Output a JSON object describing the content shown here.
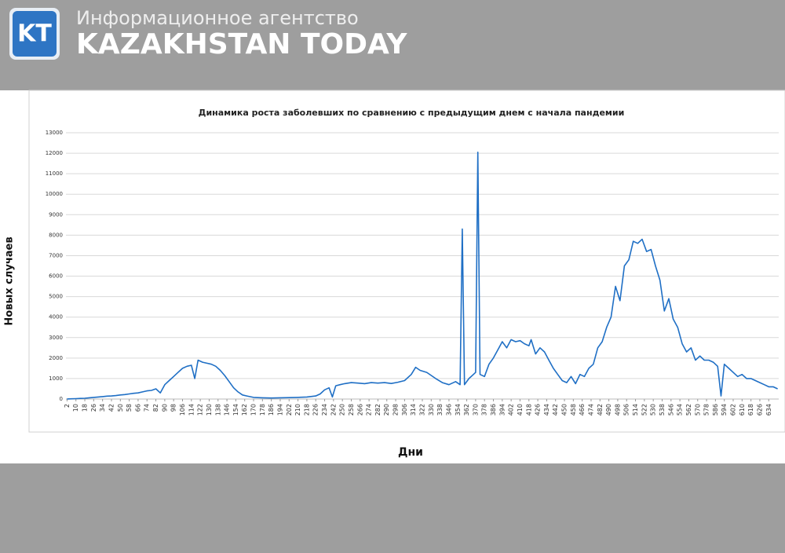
{
  "header": {
    "logo": "KT",
    "agency": "Информационное агентство",
    "brand": "KAZAKHSTAN TODAY"
  },
  "chart_data": {
    "type": "line",
    "title": "Динамика роста заболевших по сравнению с предыдущим днем с начала пандемии",
    "x_label": "Дни",
    "y_label": "Новых случаев",
    "color": "#1f6fc5",
    "grid": true,
    "xlim": [
      1,
      643
    ],
    "ylim": [
      0,
      13000
    ],
    "yticks": [
      0,
      1000,
      2000,
      3000,
      4000,
      5000,
      6000,
      7000,
      8000,
      9000,
      10000,
      11000,
      12000,
      13000
    ],
    "xticks": [
      2,
      10,
      18,
      26,
      34,
      42,
      50,
      58,
      66,
      74,
      82,
      90,
      98,
      106,
      114,
      122,
      130,
      138,
      146,
      154,
      162,
      170,
      178,
      186,
      194,
      202,
      210,
      218,
      226,
      234,
      242,
      250,
      258,
      266,
      274,
      282,
      290,
      298,
      306,
      314,
      322,
      330,
      338,
      346,
      354,
      362,
      370,
      378,
      386,
      394,
      402,
      410,
      418,
      426,
      434,
      442,
      450,
      458,
      466,
      474,
      482,
      490,
      498,
      506,
      514,
      522,
      530,
      538,
      546,
      554,
      562,
      570,
      578,
      586,
      594,
      602,
      610,
      618,
      626,
      634
    ],
    "x": [
      2,
      6,
      10,
      14,
      18,
      22,
      26,
      30,
      34,
      38,
      42,
      46,
      50,
      54,
      58,
      62,
      66,
      70,
      74,
      78,
      82,
      86,
      90,
      94,
      98,
      102,
      106,
      110,
      114,
      117,
      120,
      124,
      128,
      132,
      136,
      140,
      144,
      148,
      152,
      156,
      160,
      164,
      170,
      178,
      186,
      194,
      202,
      210,
      218,
      226,
      230,
      234,
      238,
      241,
      244,
      248,
      252,
      258,
      264,
      270,
      276,
      282,
      288,
      294,
      300,
      306,
      312,
      316,
      320,
      326,
      334,
      340,
      346,
      352,
      356,
      358,
      360,
      364,
      368,
      370,
      372,
      374,
      378,
      382,
      386,
      390,
      394,
      398,
      402,
      406,
      410,
      414,
      418,
      420,
      424,
      428,
      432,
      436,
      440,
      444,
      448,
      452,
      456,
      460,
      464,
      468,
      472,
      476,
      480,
      484,
      488,
      492,
      496,
      500,
      504,
      508,
      512,
      516,
      520,
      524,
      528,
      532,
      536,
      540,
      544,
      548,
      552,
      556,
      560,
      564,
      568,
      572,
      576,
      580,
      584,
      588,
      591,
      594,
      598,
      602,
      606,
      610,
      614,
      618,
      622,
      626,
      630,
      634,
      638,
      642
    ],
    "values": [
      5,
      10,
      20,
      30,
      40,
      60,
      80,
      100,
      120,
      140,
      150,
      170,
      200,
      220,
      250,
      280,
      300,
      350,
      400,
      420,
      500,
      300,
      700,
      900,
      1100,
      1300,
      1500,
      1600,
      1650,
      1000,
      1900,
      1800,
      1750,
      1700,
      1600,
      1400,
      1150,
      850,
      550,
      350,
      200,
      150,
      80,
      60,
      50,
      60,
      70,
      80,
      100,
      150,
      250,
      450,
      550,
      100,
      650,
      700,
      750,
      800,
      780,
      750,
      800,
      780,
      800,
      760,
      820,
      900,
      1200,
      1550,
      1400,
      1300,
      1000,
      800,
      700,
      850,
      700,
      8300,
      700,
      1000,
      1200,
      1300,
      12050,
      1200,
      1100,
      1700,
      2000,
      2400,
      2800,
      2500,
      2900,
      2800,
      2850,
      2700,
      2600,
      2900,
      2200,
      2500,
      2300,
      1900,
      1500,
      1200,
      900,
      800,
      1100,
      750,
      1200,
      1100,
      1500,
      1700,
      2500,
      2800,
      3500,
      4000,
      5500,
      4800,
      6500,
      6800,
      7700,
      7600,
      7800,
      7200,
      7300,
      6500,
      5800,
      4300,
      4900,
      3900,
      3500,
      2700,
      2300,
      2500,
      1900,
      2100,
      1900,
      1900,
      1800,
      1600,
      150,
      1700,
      1500,
      1300,
      1100,
      1200,
      1000,
      1000,
      900,
      800,
      700,
      600,
      600,
      500
    ]
  }
}
